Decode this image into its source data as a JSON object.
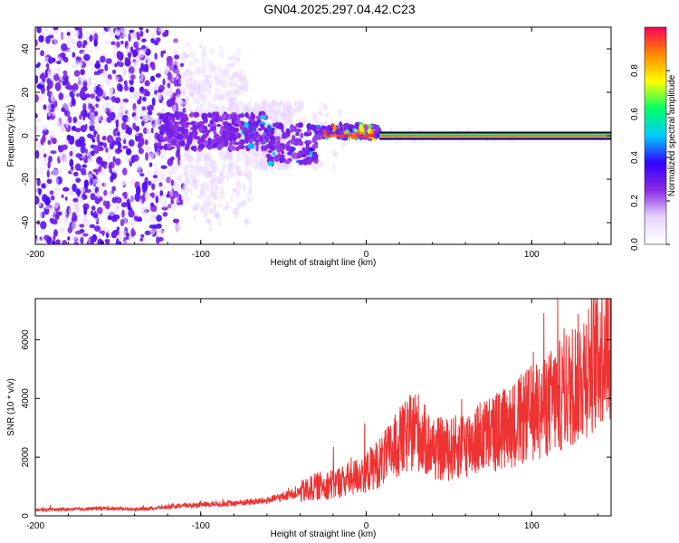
{
  "title": "GN04.2025.297.04.42.C23",
  "chart_data": [
    {
      "type": "heatmap",
      "xlabel": "Height of straight line (km)",
      "ylabel": "Frequency (Hz)",
      "xlim": [
        -200,
        148
      ],
      "ylim": [
        -50,
        50
      ],
      "xticks": [
        "-200",
        "-100",
        "0",
        "100"
      ],
      "xtick_values": [
        -200,
        -100,
        0,
        100
      ],
      "yticks": [
        "-40",
        "-20",
        "0",
        "20",
        "40"
      ],
      "ytick_values": [
        -40,
        -20,
        0,
        20,
        40
      ],
      "colorbar": {
        "label": "Normalized spectral amplitude",
        "range": [
          0,
          1
        ],
        "ticks": [
          "0.0",
          "0.2",
          "0.4",
          "0.6",
          "0.8"
        ],
        "tick_values": [
          0,
          0.2,
          0.4,
          0.6,
          0.8
        ],
        "colors": [
          "#ffffff",
          "#e8d5ff",
          "#8a2be2",
          "#3300ff",
          "#00ccff",
          "#00ff66",
          "#ffff00",
          "#ff8800",
          "#ff0055"
        ]
      },
      "band": {
        "x_start": 8,
        "x_end": 148,
        "frequency": 0,
        "amplitude": 0.95
      }
    },
    {
      "type": "line",
      "xlabel": "Height of straight line (km)",
      "ylabel": "SNR (10 * v/v)",
      "xlim": [
        -200,
        148
      ],
      "ylim": [
        0,
        7400
      ],
      "xticks": [
        "-200",
        "-100",
        "0",
        "100"
      ],
      "xtick_values": [
        -200,
        -100,
        0,
        100
      ],
      "yticks": [
        "0",
        "2000",
        "4000",
        "6000"
      ],
      "ytick_values": [
        0,
        2000,
        4000,
        6000
      ],
      "color": "#ee3333",
      "series": [
        {
          "x": [
            -200,
            -180,
            -160,
            -140,
            -120,
            -100,
            -80,
            -60,
            -40,
            -30,
            -20,
            -10,
            0,
            10,
            20,
            25,
            30,
            35,
            40,
            50,
            60,
            70,
            80,
            90,
            100,
            110,
            120,
            130,
            140,
            148
          ],
          "y": [
            200,
            220,
            260,
            220,
            300,
            380,
            430,
            520,
            800,
            1000,
            1100,
            1250,
            1500,
            1900,
            2500,
            2700,
            3000,
            2600,
            2300,
            2250,
            2450,
            2700,
            2900,
            3150,
            3500,
            3800,
            4200,
            4800,
            5600,
            6200
          ]
        }
      ]
    }
  ]
}
